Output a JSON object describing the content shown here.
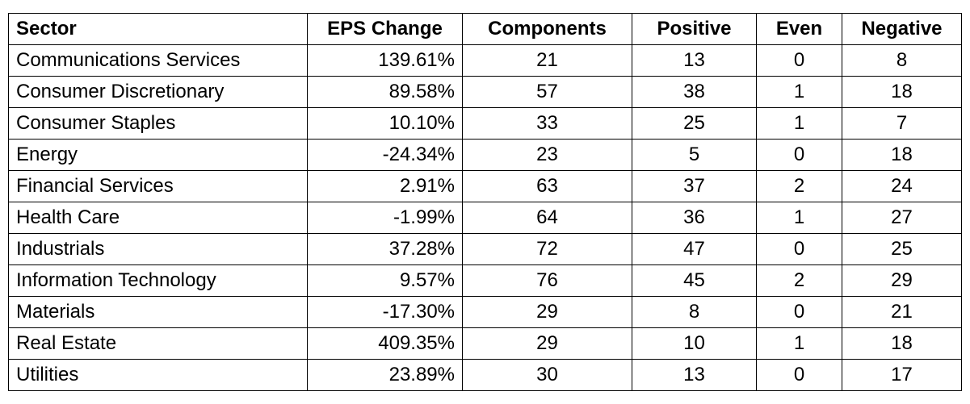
{
  "chart_data": {
    "type": "table",
    "columns": [
      "Sector",
      "EPS Change",
      "Components",
      "Positive",
      "Even",
      "Negative"
    ],
    "rows": [
      {
        "sector": "Communications Services",
        "eps_change": "139.61%",
        "components": "21",
        "positive": "13",
        "even": "0",
        "negative": "8"
      },
      {
        "sector": "Consumer Discretionary",
        "eps_change": "89.58%",
        "components": "57",
        "positive": "38",
        "even": "1",
        "negative": "18"
      },
      {
        "sector": "Consumer Staples",
        "eps_change": "10.10%",
        "components": "33",
        "positive": "25",
        "even": "1",
        "negative": "7"
      },
      {
        "sector": "Energy",
        "eps_change": "-24.34%",
        "components": "23",
        "positive": "5",
        "even": "0",
        "negative": "18"
      },
      {
        "sector": "Financial Services",
        "eps_change": "2.91%",
        "components": "63",
        "positive": "37",
        "even": "2",
        "negative": "24"
      },
      {
        "sector": "Health Care",
        "eps_change": "-1.99%",
        "components": "64",
        "positive": "36",
        "even": "1",
        "negative": "27"
      },
      {
        "sector": "Industrials",
        "eps_change": "37.28%",
        "components": "72",
        "positive": "47",
        "even": "0",
        "negative": "25"
      },
      {
        "sector": "Information Technology",
        "eps_change": "9.57%",
        "components": "76",
        "positive": "45",
        "even": "2",
        "negative": "29"
      },
      {
        "sector": "Materials",
        "eps_change": "-17.30%",
        "components": "29",
        "positive": "8",
        "even": "0",
        "negative": "21"
      },
      {
        "sector": "Real Estate",
        "eps_change": "409.35%",
        "components": "29",
        "positive": "10",
        "even": "1",
        "negative": "18"
      },
      {
        "sector": "Utilities",
        "eps_change": "23.89%",
        "components": "30",
        "positive": "13",
        "even": "0",
        "negative": "17"
      }
    ]
  }
}
